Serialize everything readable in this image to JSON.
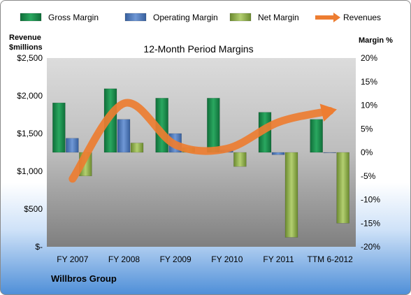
{
  "chart_data": {
    "type": "bar",
    "title": "12-Month Period Margins",
    "ylabel_left": [
      "Revenue",
      "$millions"
    ],
    "ylabel_right": "Margin %",
    "categories": [
      "FY 2007",
      "FY 2008",
      "FY 2009",
      "FY 2010",
      "FY 2011",
      "TTM 6-2012"
    ],
    "left_axis": {
      "ticks": [
        "$2,500",
        "$2,000",
        "$1,500",
        "$1,000",
        "$500",
        "$-"
      ],
      "ylim": [
        0,
        2500
      ]
    },
    "right_axis": {
      "ticks": [
        "20%",
        "15%",
        "10%",
        "5%",
        "0%",
        "-5%",
        "-10%",
        "-15%",
        "-20%"
      ],
      "ylim": [
        -20,
        20
      ]
    },
    "series": [
      {
        "name": "Gross Margin",
        "color": "#1e8a4e",
        "values": [
          10.5,
          13.5,
          11.5,
          11.5,
          8.5,
          7.0
        ]
      },
      {
        "name": "Operating Margin",
        "color": "#4f7bc0",
        "values": [
          3.0,
          7.0,
          4.0,
          0.5,
          -0.5,
          -0.1
        ]
      },
      {
        "name": "Net Margin",
        "color": "#9bbb59",
        "values": [
          -5.0,
          2.0,
          1.0,
          -3.0,
          -18.0,
          -15.0
        ]
      },
      {
        "name": "Revenues",
        "color": "#ed7d31",
        "type": "line",
        "values": [
          900,
          1900,
          1350,
          1300,
          1650,
          1800
        ]
      }
    ],
    "legend_position": "top",
    "grid": false,
    "footer": "Willbros Group"
  }
}
